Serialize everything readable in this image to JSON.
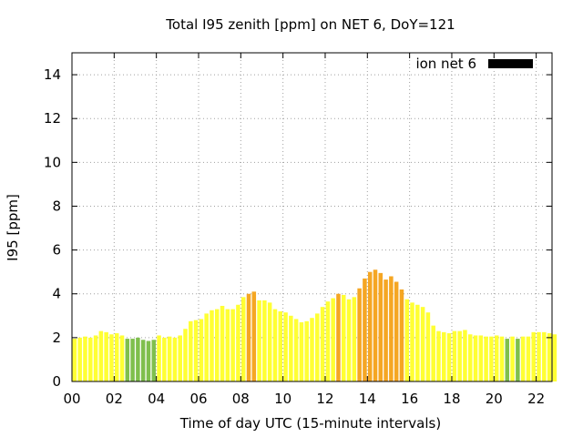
{
  "chart_data": {
    "type": "bar",
    "title": "Total I95 zenith [ppm] on NET 6, DoY=121",
    "xlabel": "Time of day UTC (15-minute intervals)",
    "ylabel": "I95 [ppm]",
    "xlim": [
      0,
      22.75
    ],
    "ylim": [
      0,
      15
    ],
    "xticks": [
      "00",
      "02",
      "04",
      "06",
      "08",
      "10",
      "12",
      "14",
      "16",
      "18",
      "20",
      "22"
    ],
    "yticks": [
      0,
      2,
      4,
      6,
      8,
      10,
      12,
      14
    ],
    "grid": true,
    "legend": {
      "position": "top-right",
      "label": "ion net 6",
      "color": "#000000"
    },
    "interval_hours": 0.25,
    "values": [
      1.95,
      2.0,
      2.05,
      2.0,
      2.1,
      2.3,
      2.25,
      2.15,
      2.2,
      2.1,
      1.95,
      1.95,
      2.0,
      1.9,
      1.85,
      1.9,
      2.1,
      2.0,
      2.05,
      2.0,
      2.1,
      2.4,
      2.75,
      2.8,
      2.85,
      3.1,
      3.25,
      3.3,
      3.45,
      3.3,
      3.3,
      3.5,
      3.85,
      4.0,
      4.1,
      3.7,
      3.7,
      3.6,
      3.3,
      3.2,
      3.15,
      3.0,
      2.85,
      2.7,
      2.75,
      2.9,
      3.1,
      3.4,
      3.65,
      3.8,
      4.0,
      3.95,
      3.75,
      3.85,
      4.25,
      4.7,
      5.0,
      5.1,
      4.95,
      4.65,
      4.8,
      4.55,
      4.2,
      3.75,
      3.6,
      3.5,
      3.4,
      3.15,
      2.55,
      2.3,
      2.25,
      2.2,
      2.3,
      2.3,
      2.35,
      2.15,
      2.1,
      2.1,
      2.05,
      2.05,
      2.1,
      2.05,
      1.95,
      2.05,
      1.95,
      2.05,
      2.05,
      2.25,
      2.25,
      2.25,
      2.2,
      2.15
    ],
    "bar_colors": [
      "#ffff33",
      "#ffff33",
      "#ffff33",
      "#ffff33",
      "#ffff33",
      "#ffff33",
      "#ffff33",
      "#ffff33",
      "#ffff33",
      "#ffff33",
      "#7fbf4d",
      "#7fbf4d",
      "#7fbf4d",
      "#7fbf4d",
      "#7fbf4d",
      "#7fbf4d",
      "#ffff33",
      "#ffff33",
      "#ffff33",
      "#ffff33",
      "#ffff33",
      "#ffff33",
      "#ffff33",
      "#ffff33",
      "#ffff33",
      "#ffff33",
      "#ffff33",
      "#ffff33",
      "#ffff33",
      "#ffff33",
      "#ffff33",
      "#ffff33",
      "#ffff33",
      "#f5a623",
      "#f5a623",
      "#ffff33",
      "#ffff33",
      "#ffff33",
      "#ffff33",
      "#ffff33",
      "#ffff33",
      "#ffff33",
      "#ffff33",
      "#ffff33",
      "#ffff33",
      "#ffff33",
      "#ffff33",
      "#ffff33",
      "#ffff33",
      "#ffff33",
      "#f5a623",
      "#ffff33",
      "#ffff33",
      "#ffff33",
      "#f5a623",
      "#f5a623",
      "#f5a623",
      "#f5a623",
      "#f5a623",
      "#f5a623",
      "#f5a623",
      "#f5a623",
      "#f5a623",
      "#ffff33",
      "#ffff33",
      "#ffff33",
      "#ffff33",
      "#ffff33",
      "#ffff33",
      "#ffff33",
      "#ffff33",
      "#ffff33",
      "#ffff33",
      "#ffff33",
      "#ffff33",
      "#ffff33",
      "#ffff33",
      "#ffff33",
      "#ffff33",
      "#ffff33",
      "#ffff33",
      "#ffff33",
      "#7fbf4d",
      "#ffff33",
      "#7fbf4d",
      "#ffff33",
      "#ffff33",
      "#ffff33",
      "#ffff33",
      "#ffff33",
      "#ffff33",
      "#ffff33"
    ]
  }
}
